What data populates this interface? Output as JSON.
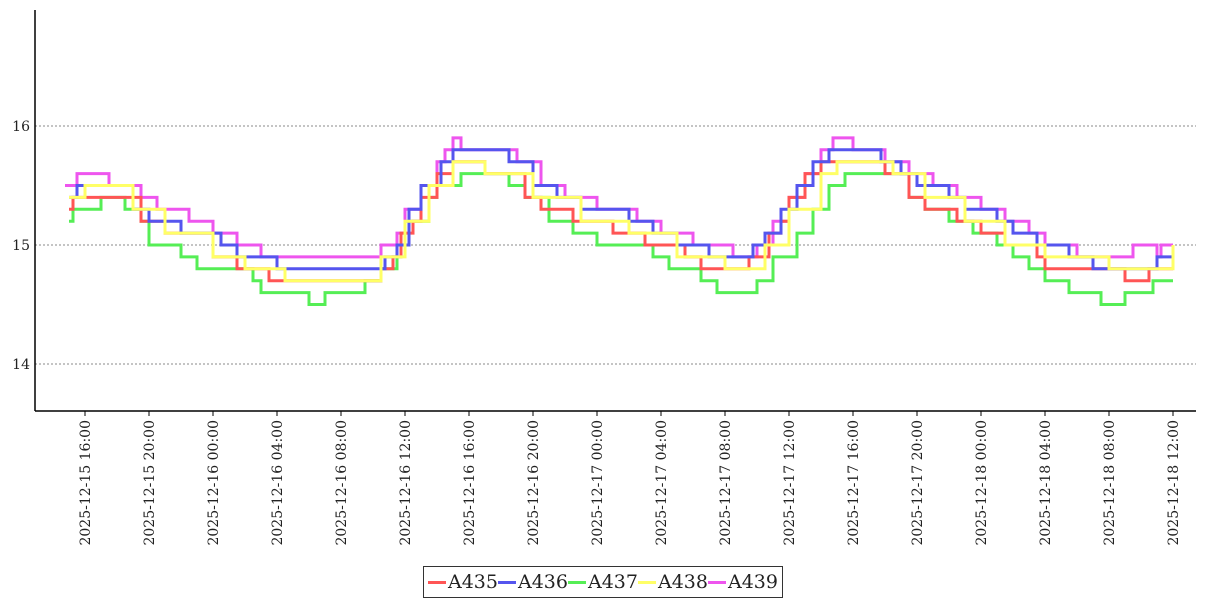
{
  "chart_data": {
    "type": "line",
    "title": "",
    "xlabel": "",
    "ylabel": "",
    "ylim": [
      13.6,
      17.0
    ],
    "yticks": [
      "14",
      "15",
      "16"
    ],
    "xlim": [
      "2025-12-15 14:00",
      "2025-12-18 12:30"
    ],
    "xticks": [
      "2025-12-15 16:00",
      "2025-12-15 20:00",
      "2025-12-16 00:00",
      "2025-12-16 04:00",
      "2025-12-16 08:00",
      "2025-12-16 12:00",
      "2025-12-16 16:00",
      "2025-12-16 20:00",
      "2025-12-17 00:00",
      "2025-12-17 04:00",
      "2025-12-17 08:00",
      "2025-12-17 12:00",
      "2025-12-17 16:00",
      "2025-12-17 20:00",
      "2025-12-18 00:00",
      "2025-12-18 04:00",
      "2025-12-18 08:00",
      "2025-12-18 12:00"
    ],
    "grid": "horizontal dotted",
    "legend_position": "bottom-center",
    "step": true,
    "series": [
      {
        "name": "A435",
        "color": "#ff5555",
        "points": [
          [
            "2025-12-15 15:00",
            15.3
          ],
          [
            "2025-12-15 15:15",
            15.4
          ],
          [
            "2025-12-15 19:30",
            15.2
          ],
          [
            "2025-12-15 21:00",
            15.1
          ],
          [
            "2025-12-16 00:00",
            14.9
          ],
          [
            "2025-12-16 01:30",
            14.8
          ],
          [
            "2025-12-16 03:30",
            14.7
          ],
          [
            "2025-12-16 10:30",
            14.8
          ],
          [
            "2025-12-16 11:15",
            14.9
          ],
          [
            "2025-12-16 11:45",
            15.1
          ],
          [
            "2025-12-16 12:30",
            15.2
          ],
          [
            "2025-12-16 13:00",
            15.4
          ],
          [
            "2025-12-16 14:00",
            15.6
          ],
          [
            "2025-12-16 15:00",
            15.7
          ],
          [
            "2025-12-16 17:00",
            15.6
          ],
          [
            "2025-12-16 19:30",
            15.4
          ],
          [
            "2025-12-16 20:30",
            15.3
          ],
          [
            "2025-12-16 22:30",
            15.2
          ],
          [
            "2025-12-17 01:00",
            15.1
          ],
          [
            "2025-12-17 03:00",
            15.0
          ],
          [
            "2025-12-17 05:30",
            14.9
          ],
          [
            "2025-12-17 06:30",
            14.8
          ],
          [
            "2025-12-17 09:30",
            14.9
          ],
          [
            "2025-12-17 10:45",
            15.1
          ],
          [
            "2025-12-17 11:30",
            15.2
          ],
          [
            "2025-12-17 12:00",
            15.4
          ],
          [
            "2025-12-17 13:00",
            15.6
          ],
          [
            "2025-12-17 14:00",
            15.7
          ],
          [
            "2025-12-17 18:00",
            15.6
          ],
          [
            "2025-12-17 19:30",
            15.4
          ],
          [
            "2025-12-17 20:30",
            15.3
          ],
          [
            "2025-12-17 22:30",
            15.2
          ],
          [
            "2025-12-18 00:00",
            15.1
          ],
          [
            "2025-12-18 01:30",
            15.0
          ],
          [
            "2025-12-18 03:30",
            14.9
          ],
          [
            "2025-12-18 04:00",
            14.8
          ],
          [
            "2025-12-18 09:00",
            14.7
          ],
          [
            "2025-12-18 10:30",
            14.8
          ],
          [
            "2025-12-18 12:00",
            14.8
          ]
        ]
      },
      {
        "name": "A436",
        "color": "#5555ee",
        "points": [
          [
            "2025-12-15 15:00",
            15.4
          ],
          [
            "2025-12-15 15:30",
            15.5
          ],
          [
            "2025-12-15 19:00",
            15.3
          ],
          [
            "2025-12-15 20:00",
            15.2
          ],
          [
            "2025-12-15 22:00",
            15.1
          ],
          [
            "2025-12-16 00:30",
            15.0
          ],
          [
            "2025-12-16 01:30",
            14.9
          ],
          [
            "2025-12-16 04:00",
            14.8
          ],
          [
            "2025-12-16 10:45",
            14.9
          ],
          [
            "2025-12-16 11:30",
            15.0
          ],
          [
            "2025-12-16 12:15",
            15.3
          ],
          [
            "2025-12-16 13:00",
            15.5
          ],
          [
            "2025-12-16 14:15",
            15.7
          ],
          [
            "2025-12-16 15:00",
            15.8
          ],
          [
            "2025-12-16 18:30",
            15.7
          ],
          [
            "2025-12-16 20:00",
            15.5
          ],
          [
            "2025-12-16 21:30",
            15.4
          ],
          [
            "2025-12-16 23:00",
            15.3
          ],
          [
            "2025-12-17 02:00",
            15.2
          ],
          [
            "2025-12-17 03:30",
            15.1
          ],
          [
            "2025-12-17 05:00",
            15.0
          ],
          [
            "2025-12-17 07:00",
            14.9
          ],
          [
            "2025-12-17 09:45",
            15.0
          ],
          [
            "2025-12-17 10:30",
            15.1
          ],
          [
            "2025-12-17 11:30",
            15.3
          ],
          [
            "2025-12-17 12:30",
            15.5
          ],
          [
            "2025-12-17 13:30",
            15.7
          ],
          [
            "2025-12-17 14:30",
            15.8
          ],
          [
            "2025-12-17 17:45",
            15.7
          ],
          [
            "2025-12-17 19:00",
            15.6
          ],
          [
            "2025-12-17 20:00",
            15.5
          ],
          [
            "2025-12-17 22:00",
            15.4
          ],
          [
            "2025-12-17 23:00",
            15.3
          ],
          [
            "2025-12-18 01:00",
            15.2
          ],
          [
            "2025-12-18 02:00",
            15.1
          ],
          [
            "2025-12-18 03:30",
            15.0
          ],
          [
            "2025-12-18 05:30",
            14.9
          ],
          [
            "2025-12-18 07:00",
            14.8
          ],
          [
            "2025-12-18 11:00",
            14.9
          ],
          [
            "2025-12-18 12:00",
            14.9
          ]
        ]
      },
      {
        "name": "A437",
        "color": "#55ee55",
        "points": [
          [
            "2025-12-15 15:00",
            15.2
          ],
          [
            "2025-12-15 15:15",
            15.3
          ],
          [
            "2025-12-15 17:00",
            15.4
          ],
          [
            "2025-12-15 18:30",
            15.3
          ],
          [
            "2025-12-15 19:30",
            15.2
          ],
          [
            "2025-12-15 20:00",
            15.0
          ],
          [
            "2025-12-15 22:00",
            14.9
          ],
          [
            "2025-12-15 23:00",
            14.8
          ],
          [
            "2025-12-16 02:30",
            14.7
          ],
          [
            "2025-12-16 03:00",
            14.6
          ],
          [
            "2025-12-16 06:00",
            14.5
          ],
          [
            "2025-12-16 07:00",
            14.6
          ],
          [
            "2025-12-16 09:30",
            14.7
          ],
          [
            "2025-12-16 10:30",
            14.8
          ],
          [
            "2025-12-16 11:30",
            15.0
          ],
          [
            "2025-12-16 12:00",
            15.2
          ],
          [
            "2025-12-16 13:30",
            15.4
          ],
          [
            "2025-12-16 14:00",
            15.5
          ],
          [
            "2025-12-16 15:30",
            15.6
          ],
          [
            "2025-12-16 18:30",
            15.5
          ],
          [
            "2025-12-16 19:30",
            15.4
          ],
          [
            "2025-12-16 21:00",
            15.2
          ],
          [
            "2025-12-16 22:30",
            15.1
          ],
          [
            "2025-12-17 00:00",
            15.0
          ],
          [
            "2025-12-17 03:30",
            14.9
          ],
          [
            "2025-12-17 04:30",
            14.8
          ],
          [
            "2025-12-17 06:30",
            14.7
          ],
          [
            "2025-12-17 07:30",
            14.6
          ],
          [
            "2025-12-17 10:00",
            14.7
          ],
          [
            "2025-12-17 11:00",
            14.9
          ],
          [
            "2025-12-17 12:30",
            15.1
          ],
          [
            "2025-12-17 13:30",
            15.3
          ],
          [
            "2025-12-17 14:30",
            15.5
          ],
          [
            "2025-12-17 15:30",
            15.6
          ],
          [
            "2025-12-17 19:30",
            15.4
          ],
          [
            "2025-12-17 20:30",
            15.3
          ],
          [
            "2025-12-17 22:00",
            15.2
          ],
          [
            "2025-12-17 23:30",
            15.1
          ],
          [
            "2025-12-18 01:00",
            15.0
          ],
          [
            "2025-12-18 02:00",
            14.9
          ],
          [
            "2025-12-18 03:00",
            14.8
          ],
          [
            "2025-12-18 04:00",
            14.7
          ],
          [
            "2025-12-18 05:30",
            14.6
          ],
          [
            "2025-12-18 07:30",
            14.5
          ],
          [
            "2025-12-18 09:00",
            14.6
          ],
          [
            "2025-12-18 10:45",
            14.7
          ],
          [
            "2025-12-18 12:00",
            14.7
          ]
        ]
      },
      {
        "name": "A438",
        "color": "#ffff66",
        "points": [
          [
            "2025-12-15 15:00",
            15.4
          ],
          [
            "2025-12-15 16:00",
            15.5
          ],
          [
            "2025-12-15 19:00",
            15.3
          ],
          [
            "2025-12-15 21:00",
            15.1
          ],
          [
            "2025-12-16 00:00",
            14.9
          ],
          [
            "2025-12-16 02:00",
            14.8
          ],
          [
            "2025-12-16 04:30",
            14.7
          ],
          [
            "2025-12-16 10:30",
            14.9
          ],
          [
            "2025-12-16 12:00",
            15.2
          ],
          [
            "2025-12-16 13:30",
            15.5
          ],
          [
            "2025-12-16 15:00",
            15.7
          ],
          [
            "2025-12-16 17:00",
            15.6
          ],
          [
            "2025-12-16 20:00",
            15.4
          ],
          [
            "2025-12-16 23:00",
            15.2
          ],
          [
            "2025-12-17 02:00",
            15.1
          ],
          [
            "2025-12-17 05:00",
            14.9
          ],
          [
            "2025-12-17 08:00",
            14.8
          ],
          [
            "2025-12-17 10:30",
            15.0
          ],
          [
            "2025-12-17 12:00",
            15.3
          ],
          [
            "2025-12-17 14:00",
            15.6
          ],
          [
            "2025-12-17 15:00",
            15.7
          ],
          [
            "2025-12-17 18:30",
            15.6
          ],
          [
            "2025-12-17 20:30",
            15.4
          ],
          [
            "2025-12-17 23:00",
            15.2
          ],
          [
            "2025-12-18 01:30",
            15.0
          ],
          [
            "2025-12-18 04:00",
            14.9
          ],
          [
            "2025-12-18 08:00",
            14.8
          ],
          [
            "2025-12-18 12:00",
            15.0
          ]
        ]
      },
      {
        "name": "A439",
        "color": "#ee55ee",
        "points": [
          [
            "2025-12-15 14:45",
            15.5
          ],
          [
            "2025-12-15 15:30",
            15.6
          ],
          [
            "2025-12-15 17:30",
            15.5
          ],
          [
            "2025-12-15 19:30",
            15.4
          ],
          [
            "2025-12-15 20:30",
            15.3
          ],
          [
            "2025-12-15 22:30",
            15.2
          ],
          [
            "2025-12-16 00:00",
            15.1
          ],
          [
            "2025-12-16 01:30",
            15.0
          ],
          [
            "2025-12-16 03:00",
            14.9
          ],
          [
            "2025-12-16 10:30",
            15.0
          ],
          [
            "2025-12-16 11:30",
            15.1
          ],
          [
            "2025-12-16 12:00",
            15.3
          ],
          [
            "2025-12-16 13:00",
            15.5
          ],
          [
            "2025-12-16 14:00",
            15.7
          ],
          [
            "2025-12-16 14:30",
            15.8
          ],
          [
            "2025-12-16 15:00",
            15.9
          ],
          [
            "2025-12-16 15:30",
            15.8
          ],
          [
            "2025-12-16 19:00",
            15.7
          ],
          [
            "2025-12-16 20:30",
            15.5
          ],
          [
            "2025-12-16 22:00",
            15.4
          ],
          [
            "2025-12-17 00:00",
            15.3
          ],
          [
            "2025-12-17 02:30",
            15.2
          ],
          [
            "2025-12-17 04:00",
            15.1
          ],
          [
            "2025-12-17 06:00",
            15.0
          ],
          [
            "2025-12-17 08:30",
            14.9
          ],
          [
            "2025-12-17 10:00",
            15.0
          ],
          [
            "2025-12-17 11:00",
            15.2
          ],
          [
            "2025-12-17 12:00",
            15.4
          ],
          [
            "2025-12-17 13:00",
            15.6
          ],
          [
            "2025-12-17 14:00",
            15.8
          ],
          [
            "2025-12-17 14:45",
            15.9
          ],
          [
            "2025-12-17 16:00",
            15.8
          ],
          [
            "2025-12-17 18:00",
            15.7
          ],
          [
            "2025-12-17 19:30",
            15.6
          ],
          [
            "2025-12-17 21:00",
            15.5
          ],
          [
            "2025-12-17 22:30",
            15.4
          ],
          [
            "2025-12-18 00:00",
            15.3
          ],
          [
            "2025-12-18 01:30",
            15.2
          ],
          [
            "2025-12-18 03:00",
            15.1
          ],
          [
            "2025-12-18 04:00",
            15.0
          ],
          [
            "2025-12-18 06:00",
            14.9
          ],
          [
            "2025-12-18 09:30",
            15.0
          ],
          [
            "2025-12-18 11:00",
            14.9
          ],
          [
            "2025-12-18 11:15",
            15.0
          ],
          [
            "2025-12-18 12:00",
            15.0
          ]
        ]
      }
    ]
  }
}
